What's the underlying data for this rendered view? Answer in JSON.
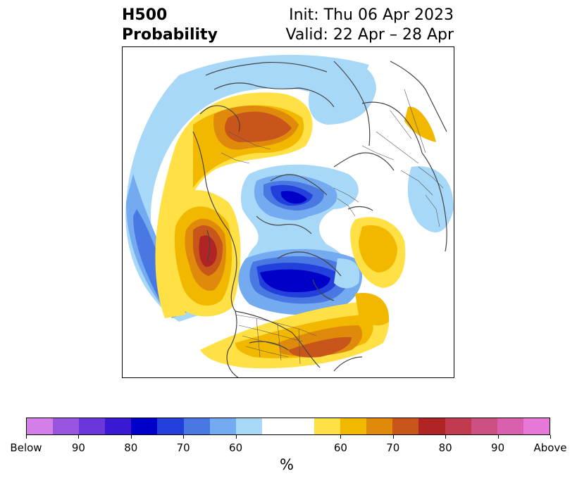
{
  "header": {
    "title_line1": "H500",
    "title_line2": "Probability",
    "init": "Init: Thu 06 Apr 2023",
    "valid": "Valid: 22 Apr – 28 Apr"
  },
  "colorbar": {
    "label": "%",
    "colors": [
      "#d47fe8",
      "#9a55e0",
      "#6a37da",
      "#3a18d4",
      "#0000c8",
      "#2240dc",
      "#4a78e2",
      "#74aaf0",
      "#a8d8f8",
      "#ffffff",
      "#ffffff",
      "#ffe045",
      "#f2b800",
      "#e08a0c",
      "#c8561a",
      "#b02424",
      "#c23a50",
      "#cc5082",
      "#d860ac",
      "#e778d8"
    ],
    "ticks": [
      "Below",
      "90",
      "80",
      "70",
      "60",
      "60",
      "70",
      "80",
      "90",
      "Above"
    ]
  },
  "map": {
    "projection": "north-polar-stereographic",
    "palette": {
      "b60": "#a8d8f8",
      "b65": "#74aaf0",
      "b70": "#4a78e2",
      "b75": "#2240dc",
      "b80": "#0000c8",
      "a60": "#ffe045",
      "a65": "#f2b800",
      "a70": "#e08a0c",
      "a75": "#c8561a",
      "a80": "#b02424",
      "coast": "#444444"
    }
  }
}
